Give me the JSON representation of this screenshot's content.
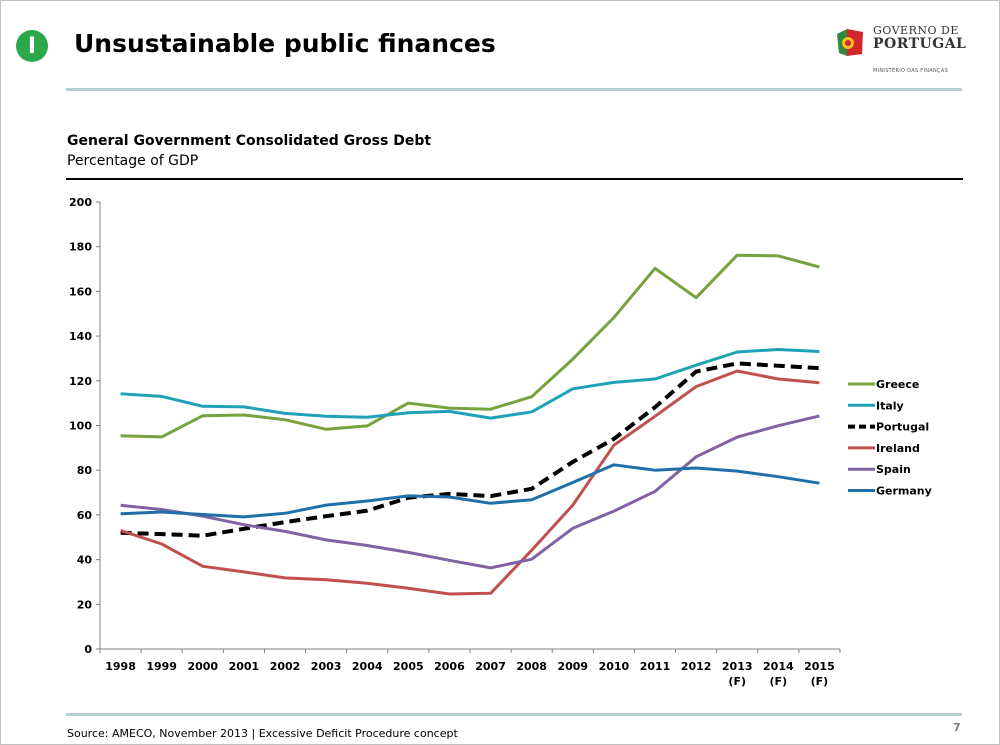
{
  "header": {
    "section_marker": "I",
    "title": "Unsustainable public finances",
    "logo": {
      "line1": "GOVERNO DE",
      "line2": "PORTUGAL",
      "line3": "MINISTÉRIO DAS FINANÇAS"
    }
  },
  "footer": {
    "source": "Source: AMECO, November 2013 | Excessive Deficit Procedure concept",
    "page_number": "7"
  },
  "chart_data": {
    "type": "line",
    "title": "General Government Consolidated Gross Debt",
    "subtitle": "Percentage of GDP",
    "xlabel": "",
    "ylabel": "",
    "categories": [
      "1998",
      "1999",
      "2000",
      "2001",
      "2002",
      "2003",
      "2004",
      "2005",
      "2006",
      "2007",
      "2008",
      "2009",
      "2010",
      "2011",
      "2012",
      "2013",
      "2014",
      "2015"
    ],
    "category_sublabels": [
      "",
      "",
      "",
      "",
      "",
      "",
      "",
      "",
      "",
      "",
      "",
      "",
      "",
      "",
      "",
      "(F)",
      "(F)",
      "(F)"
    ],
    "ylim": [
      0,
      200
    ],
    "yticks": [
      0,
      20,
      40,
      60,
      80,
      100,
      120,
      140,
      160,
      180,
      200
    ],
    "grid": false,
    "legend_position": "right",
    "series": [
      {
        "name": "Greece",
        "color": "#77a23d",
        "dashed": false,
        "values": [
          95.4,
          94.9,
          104.4,
          104.7,
          102.6,
          98.3,
          99.8,
          110,
          107.8,
          107.3,
          112.9,
          129.7,
          148.3,
          170.3,
          157.2,
          176.2,
          175.9,
          170.9
        ]
      },
      {
        "name": "Italy",
        "color": "#1fa2b8",
        "dashed": false,
        "values": [
          114.2,
          113,
          108.6,
          108.3,
          105.4,
          104.1,
          103.7,
          105.7,
          106.3,
          103.3,
          106.1,
          116.4,
          119.3,
          120.8,
          127,
          132.9,
          134,
          133.1
        ]
      },
      {
        "name": "Portugal",
        "color": "#000000",
        "dashed": true,
        "values": [
          52,
          51.4,
          50.7,
          53.8,
          56.8,
          59.4,
          61.9,
          67.7,
          69.4,
          68.4,
          71.7,
          83.7,
          94,
          108.2,
          124.1,
          127.8,
          126.7,
          125.7
        ]
      },
      {
        "name": "Ireland",
        "color": "#c0504d",
        "dashed": false,
        "values": [
          53,
          47,
          37,
          34.5,
          31.8,
          31,
          29.4,
          27.2,
          24.6,
          24.9,
          44.2,
          64.4,
          91.2,
          104.1,
          117.4,
          124.4,
          120.8,
          119.1
        ]
      },
      {
        "name": "Spain",
        "color": "#8064a2",
        "dashed": false,
        "values": [
          64.3,
          62.4,
          59.4,
          55.6,
          52.6,
          48.8,
          46.3,
          43.2,
          39.7,
          36.3,
          40.2,
          54,
          61.7,
          70.5,
          86,
          94.8,
          99.9,
          104.3
        ]
      },
      {
        "name": "Germany",
        "color": "#1f6fa8",
        "dashed": false,
        "values": [
          60.5,
          61.3,
          60.2,
          59.1,
          60.7,
          64.4,
          66.2,
          68.5,
          68,
          65.2,
          66.8,
          74.5,
          82.4,
          80,
          81,
          79.6,
          77.1,
          74.2
        ]
      }
    ]
  }
}
